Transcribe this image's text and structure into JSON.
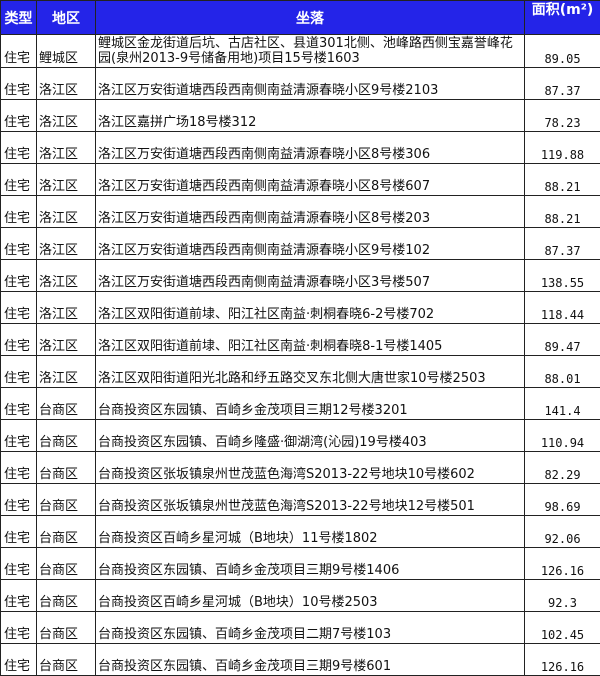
{
  "header": {
    "type": "类型",
    "district": "地区",
    "location": "坐落",
    "area": "面积(m²)"
  },
  "colors": {
    "header_bg": "#2424e8",
    "header_text": "#ffffff"
  },
  "rows": [
    {
      "type": "住宅",
      "district": "鲤城区",
      "location": "鲤城区金龙街道后坑、古店社区、县道301北侧、池峰路西侧宝嘉誉峰花园(泉州2013-9号储备用地)项目15号楼1603",
      "area": "89.05"
    },
    {
      "type": "住宅",
      "district": "洛江区",
      "location": "洛江区万安街道塘西段西南侧南益清源春晓小区9号楼2103",
      "area": "87.37"
    },
    {
      "type": "住宅",
      "district": "洛江区",
      "location": "洛江区嘉拼广场18号楼312",
      "area": "78.23"
    },
    {
      "type": "住宅",
      "district": "洛江区",
      "location": "洛江区万安街道塘西段西南侧南益清源春晓小区8号楼306",
      "area": "119.88"
    },
    {
      "type": "住宅",
      "district": "洛江区",
      "location": "洛江区万安街道塘西段西南侧南益清源春晓小区8号楼607",
      "area": "88.21"
    },
    {
      "type": "住宅",
      "district": "洛江区",
      "location": "洛江区万安街道塘西段西南侧南益清源春晓小区8号楼203",
      "area": "88.21"
    },
    {
      "type": "住宅",
      "district": "洛江区",
      "location": "洛江区万安街道塘西段西南侧南益清源春晓小区9号楼102",
      "area": "87.37"
    },
    {
      "type": "住宅",
      "district": "洛江区",
      "location": "洛江区万安街道塘西段西南侧南益清源春晓小区3号楼507",
      "area": "138.55"
    },
    {
      "type": "住宅",
      "district": "洛江区",
      "location": "洛江区双阳街道前埭、阳江社区南益·刺桐春晓6-2号楼702",
      "area": "118.44"
    },
    {
      "type": "住宅",
      "district": "洛江区",
      "location": "洛江区双阳街道前埭、阳江社区南益·刺桐春晓8-1号楼1405",
      "area": "89.47"
    },
    {
      "type": "住宅",
      "district": "洛江区",
      "location": "洛江区双阳街道阳光北路和纾五路交叉东北侧大唐世家10号楼2503",
      "area": "88.01"
    },
    {
      "type": "住宅",
      "district": "台商区",
      "location": "台商投资区东园镇、百崎乡金茂项目三期12号楼3201",
      "area": "141.4"
    },
    {
      "type": "住宅",
      "district": "台商区",
      "location": "台商投资区东园镇、百崎乡隆盛·御湖湾(沁园)19号楼403",
      "area": "110.94"
    },
    {
      "type": "住宅",
      "district": "台商区",
      "location": "台商投资区张坂镇泉州世茂蓝色海湾S2013-22号地块10号楼602",
      "area": "82.29"
    },
    {
      "type": "住宅",
      "district": "台商区",
      "location": "台商投资区张坂镇泉州世茂蓝色海湾S2013-22号地块12号楼501",
      "area": "98.69"
    },
    {
      "type": "住宅",
      "district": "台商区",
      "location": "台商投资区百崎乡星河城（B地块）11号楼1802",
      "area": "92.06"
    },
    {
      "type": "住宅",
      "district": "台商区",
      "location": "台商投资区东园镇、百崎乡金茂项目三期9号楼1406",
      "area": "126.16"
    },
    {
      "type": "住宅",
      "district": "台商区",
      "location": "台商投资区百崎乡星河城（B地块）10号楼2503",
      "area": "92.3"
    },
    {
      "type": "住宅",
      "district": "台商区",
      "location": "台商投资区东园镇、百崎乡金茂项目二期7号楼103",
      "area": "102.45"
    },
    {
      "type": "住宅",
      "district": "台商区",
      "location": "台商投资区东园镇、百崎乡金茂项目三期9号楼601",
      "area": "126.16"
    }
  ]
}
